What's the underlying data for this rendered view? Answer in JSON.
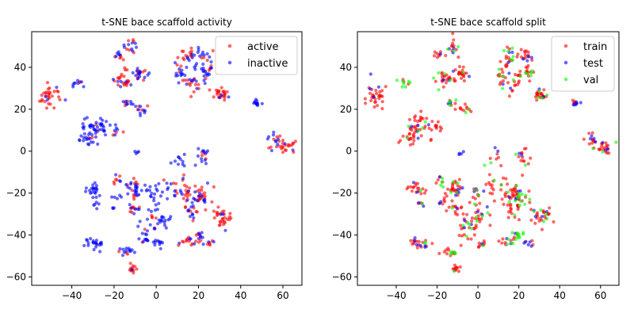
{
  "chart_data": [
    {
      "type": "scatter",
      "title": "t-SNE bace scaffold activity",
      "xlabel": "",
      "ylabel": "",
      "xlim": [
        -59,
        69
      ],
      "ylim": [
        -64,
        57
      ],
      "xticks": [
        -40,
        -20,
        0,
        20,
        40,
        60
      ],
      "yticks": [
        -60,
        -40,
        -20,
        0,
        20,
        40
      ],
      "grid": false,
      "legend_position": "upper right",
      "series": [
        {
          "name": "active",
          "color": "#ff0000"
        },
        {
          "name": "inactive",
          "color": "#0000ff"
        }
      ],
      "clusters": [
        {
          "x": -50,
          "y": 27,
          "n": 32,
          "sx": 2.5,
          "sy": 3.5,
          "mix": [
            0.9,
            0.1
          ]
        },
        {
          "x": -37,
          "y": 32,
          "n": 10,
          "sx": 1.5,
          "sy": 1.0,
          "mix": [
            0.3,
            0.7
          ]
        },
        {
          "x": -18,
          "y": 46,
          "n": 10,
          "sx": 1.5,
          "sy": 1.2,
          "mix": [
            0.6,
            0.4
          ]
        },
        {
          "x": -12,
          "y": 50,
          "n": 14,
          "sx": 1.5,
          "sy": 2.0,
          "mix": [
            0.5,
            0.5
          ]
        },
        {
          "x": -16,
          "y": 34,
          "n": 26,
          "sx": 2.5,
          "sy": 2.0,
          "mix": [
            0.8,
            0.2
          ]
        },
        {
          "x": -8,
          "y": 37,
          "n": 22,
          "sx": 2.0,
          "sy": 2.0,
          "mix": [
            0.5,
            0.5
          ]
        },
        {
          "x": -13,
          "y": 23,
          "n": 10,
          "sx": 1.5,
          "sy": 1.0,
          "mix": [
            0.2,
            0.8
          ]
        },
        {
          "x": -7,
          "y": 20,
          "n": 12,
          "sx": 2.0,
          "sy": 1.5,
          "mix": [
            0.3,
            0.7
          ]
        },
        {
          "x": -29,
          "y": 12,
          "n": 40,
          "sx": 3.5,
          "sy": 3.0,
          "mix": [
            0.1,
            0.9
          ]
        },
        {
          "x": -33,
          "y": 6,
          "n": 16,
          "sx": 3.0,
          "sy": 1.2,
          "mix": [
            0.1,
            0.9
          ]
        },
        {
          "x": -20,
          "y": 11,
          "n": 10,
          "sx": 2.0,
          "sy": 1.5,
          "mix": [
            0.1,
            0.9
          ]
        },
        {
          "x": -9,
          "y": -1,
          "n": 4,
          "sx": 1.0,
          "sy": 0.5,
          "mix": [
            0.2,
            0.8
          ]
        },
        {
          "x": 12,
          "y": 37,
          "n": 20,
          "sx": 1.5,
          "sy": 3.0,
          "mix": [
            0.4,
            0.6
          ]
        },
        {
          "x": 18,
          "y": 33,
          "n": 20,
          "sx": 2.0,
          "sy": 3.0,
          "mix": [
            0.6,
            0.4
          ]
        },
        {
          "x": 16,
          "y": 46,
          "n": 18,
          "sx": 2.0,
          "sy": 2.0,
          "mix": [
            0.4,
            0.6
          ]
        },
        {
          "x": 23,
          "y": 46,
          "n": 16,
          "sx": 2.0,
          "sy": 2.0,
          "mix": [
            0.3,
            0.7
          ]
        },
        {
          "x": 24,
          "y": 38,
          "n": 18,
          "sx": 1.5,
          "sy": 2.0,
          "mix": [
            0.4,
            0.6
          ]
        },
        {
          "x": 31,
          "y": 27,
          "n": 25,
          "sx": 2.0,
          "sy": 1.5,
          "mix": [
            0.9,
            0.1
          ]
        },
        {
          "x": 48,
          "y": 23,
          "n": 12,
          "sx": 1.2,
          "sy": 0.6,
          "mix": [
            0.0,
            1.0
          ]
        },
        {
          "x": 55,
          "y": 5,
          "n": 12,
          "sx": 2.0,
          "sy": 1.5,
          "mix": [
            0.1,
            0.9
          ]
        },
        {
          "x": 61,
          "y": 2,
          "n": 24,
          "sx": 2.5,
          "sy": 1.5,
          "mix": [
            0.7,
            0.3
          ]
        },
        {
          "x": 10,
          "y": -4,
          "n": 10,
          "sx": 3.0,
          "sy": 2.5,
          "mix": [
            0.0,
            1.0
          ]
        },
        {
          "x": 22,
          "y": -3,
          "n": 16,
          "sx": 2.0,
          "sy": 3.0,
          "mix": [
            0.4,
            0.6
          ]
        },
        {
          "x": -30,
          "y": -18,
          "n": 20,
          "sx": 2.0,
          "sy": 1.5,
          "mix": [
            0.1,
            0.9
          ]
        },
        {
          "x": -18,
          "y": -14,
          "n": 8,
          "sx": 1.5,
          "sy": 1.0,
          "mix": [
            0.7,
            0.3
          ]
        },
        {
          "x": -19,
          "y": -24,
          "n": 8,
          "sx": 1.5,
          "sy": 2.0,
          "mix": [
            0.1,
            0.9
          ]
        },
        {
          "x": -28,
          "y": -25,
          "n": 6,
          "sx": 1.0,
          "sy": 1.0,
          "mix": [
            0.1,
            0.9
          ]
        },
        {
          "x": -11,
          "y": -18,
          "n": 30,
          "sx": 2.0,
          "sy": 2.5,
          "mix": [
            0.2,
            0.8
          ]
        },
        {
          "x": -11,
          "y": -27,
          "n": 15,
          "sx": 2.0,
          "sy": 2.0,
          "mix": [
            0.5,
            0.5
          ]
        },
        {
          "x": -1,
          "y": -21,
          "n": 15,
          "sx": 1.5,
          "sy": 4.0,
          "mix": [
            0.0,
            1.0
          ]
        },
        {
          "x": 6,
          "y": -18,
          "n": 12,
          "sx": 1.5,
          "sy": 3.0,
          "mix": [
            0.1,
            0.9
          ]
        },
        {
          "x": 15,
          "y": -20,
          "n": 32,
          "sx": 3.0,
          "sy": 3.0,
          "mix": [
            0.7,
            0.3
          ]
        },
        {
          "x": 21,
          "y": -22,
          "n": 25,
          "sx": 2.5,
          "sy": 2.5,
          "mix": [
            0.6,
            0.4
          ]
        },
        {
          "x": 31,
          "y": -31,
          "n": 30,
          "sx": 2.5,
          "sy": 2.5,
          "mix": [
            0.9,
            0.1
          ]
        },
        {
          "x": 17,
          "y": -29,
          "n": 15,
          "sx": 2.0,
          "sy": 2.0,
          "mix": [
            0.5,
            0.5
          ]
        },
        {
          "x": 0,
          "y": -33,
          "n": 30,
          "sx": 3.5,
          "sy": 2.5,
          "mix": [
            0.2,
            0.8
          ]
        },
        {
          "x": -6,
          "y": -40,
          "n": 15,
          "sx": 2.0,
          "sy": 2.5,
          "mix": [
            0.1,
            0.9
          ]
        },
        {
          "x": 1,
          "y": -44,
          "n": 10,
          "sx": 1.5,
          "sy": 1.0,
          "mix": [
            0.1,
            0.9
          ]
        },
        {
          "x": -29,
          "y": -44,
          "n": 22,
          "sx": 2.5,
          "sy": 1.5,
          "mix": [
            0.1,
            0.9
          ]
        },
        {
          "x": -13,
          "y": -48,
          "n": 15,
          "sx": 2.5,
          "sy": 1.0,
          "mix": [
            0.4,
            0.6
          ]
        },
        {
          "x": -11,
          "y": -56,
          "n": 12,
          "sx": 1.0,
          "sy": 1.5,
          "mix": [
            0.7,
            0.3
          ]
        },
        {
          "x": 15,
          "y": -43,
          "n": 15,
          "sx": 2.0,
          "sy": 1.5,
          "mix": [
            0.6,
            0.4
          ]
        },
        {
          "x": 20,
          "y": -40,
          "n": 12,
          "sx": 1.5,
          "sy": 1.5,
          "mix": [
            0.5,
            0.5
          ]
        },
        {
          "x": 25,
          "y": -44,
          "n": 8,
          "sx": 1.5,
          "sy": 1.0,
          "mix": [
            0.3,
            0.7
          ]
        }
      ]
    },
    {
      "type": "scatter",
      "title": "t-SNE bace scaffold split",
      "xlabel": "",
      "ylabel": "",
      "xlim": [
        -59,
        69
      ],
      "ylim": [
        -64,
        57
      ],
      "xticks": [
        -40,
        -20,
        0,
        20,
        40,
        60
      ],
      "yticks": [
        -60,
        -40,
        -20,
        0,
        20,
        40
      ],
      "grid": false,
      "legend_position": "upper right",
      "series": [
        {
          "name": "train",
          "color": "#ff0000"
        },
        {
          "name": "test",
          "color": "#0000ff"
        },
        {
          "name": "val",
          "color": "#00ff00"
        }
      ],
      "clusters": [
        {
          "x": -50,
          "y": 27,
          "n": 32,
          "sx": 2.5,
          "sy": 3.5,
          "mix": [
            0.85,
            0.1,
            0.05
          ]
        },
        {
          "x": -37,
          "y": 32,
          "n": 10,
          "sx": 1.5,
          "sy": 1.0,
          "mix": [
            0.2,
            0.3,
            0.5
          ]
        },
        {
          "x": -18,
          "y": 46,
          "n": 10,
          "sx": 1.5,
          "sy": 1.2,
          "mix": [
            0.8,
            0.1,
            0.1
          ]
        },
        {
          "x": -12,
          "y": 50,
          "n": 14,
          "sx": 1.5,
          "sy": 2.0,
          "mix": [
            0.6,
            0.2,
            0.2
          ]
        },
        {
          "x": -16,
          "y": 34,
          "n": 26,
          "sx": 2.5,
          "sy": 2.0,
          "mix": [
            0.8,
            0.1,
            0.1
          ]
        },
        {
          "x": -8,
          "y": 37,
          "n": 22,
          "sx": 2.0,
          "sy": 2.0,
          "mix": [
            0.8,
            0.1,
            0.1
          ]
        },
        {
          "x": -13,
          "y": 23,
          "n": 10,
          "sx": 1.5,
          "sy": 1.0,
          "mix": [
            0.6,
            0.2,
            0.2
          ]
        },
        {
          "x": -7,
          "y": 20,
          "n": 12,
          "sx": 2.0,
          "sy": 1.5,
          "mix": [
            0.7,
            0.1,
            0.2
          ]
        },
        {
          "x": -29,
          "y": 12,
          "n": 40,
          "sx": 3.5,
          "sy": 3.0,
          "mix": [
            0.8,
            0.1,
            0.1
          ]
        },
        {
          "x": -33,
          "y": 6,
          "n": 16,
          "sx": 3.0,
          "sy": 1.2,
          "mix": [
            0.8,
            0.1,
            0.1
          ]
        },
        {
          "x": -20,
          "y": 11,
          "n": 10,
          "sx": 2.0,
          "sy": 1.5,
          "mix": [
            0.8,
            0.1,
            0.1
          ]
        },
        {
          "x": -9,
          "y": -1,
          "n": 4,
          "sx": 1.0,
          "sy": 0.5,
          "mix": [
            0.5,
            0.5,
            0.0
          ]
        },
        {
          "x": 12,
          "y": 37,
          "n": 20,
          "sx": 1.5,
          "sy": 3.0,
          "mix": [
            0.8,
            0.1,
            0.1
          ]
        },
        {
          "x": 18,
          "y": 33,
          "n": 20,
          "sx": 2.0,
          "sy": 3.0,
          "mix": [
            0.7,
            0.1,
            0.2
          ]
        },
        {
          "x": 16,
          "y": 46,
          "n": 18,
          "sx": 2.0,
          "sy": 2.0,
          "mix": [
            0.7,
            0.1,
            0.2
          ]
        },
        {
          "x": 23,
          "y": 46,
          "n": 16,
          "sx": 2.0,
          "sy": 2.0,
          "mix": [
            0.7,
            0.2,
            0.1
          ]
        },
        {
          "x": 24,
          "y": 38,
          "n": 18,
          "sx": 1.5,
          "sy": 2.0,
          "mix": [
            0.7,
            0.1,
            0.2
          ]
        },
        {
          "x": 31,
          "y": 27,
          "n": 25,
          "sx": 2.0,
          "sy": 1.5,
          "mix": [
            0.8,
            0.1,
            0.1
          ]
        },
        {
          "x": 48,
          "y": 23,
          "n": 12,
          "sx": 1.2,
          "sy": 0.6,
          "mix": [
            0.6,
            0.4,
            0.0
          ]
        },
        {
          "x": 55,
          "y": 5,
          "n": 12,
          "sx": 2.0,
          "sy": 1.5,
          "mix": [
            0.8,
            0.2,
            0.0
          ]
        },
        {
          "x": 61,
          "y": 2,
          "n": 24,
          "sx": 2.5,
          "sy": 1.5,
          "mix": [
            0.7,
            0.1,
            0.2
          ]
        },
        {
          "x": 10,
          "y": -4,
          "n": 10,
          "sx": 3.0,
          "sy": 2.5,
          "mix": [
            0.8,
            0.1,
            0.1
          ]
        },
        {
          "x": 22,
          "y": -3,
          "n": 16,
          "sx": 2.0,
          "sy": 3.0,
          "mix": [
            0.7,
            0.2,
            0.1
          ]
        },
        {
          "x": -30,
          "y": -18,
          "n": 20,
          "sx": 2.0,
          "sy": 1.5,
          "mix": [
            0.8,
            0.1,
            0.1
          ]
        },
        {
          "x": -18,
          "y": -14,
          "n": 8,
          "sx": 1.5,
          "sy": 1.0,
          "mix": [
            0.8,
            0.1,
            0.1
          ]
        },
        {
          "x": -19,
          "y": -24,
          "n": 8,
          "sx": 1.5,
          "sy": 2.0,
          "mix": [
            0.7,
            0.2,
            0.1
          ]
        },
        {
          "x": -28,
          "y": -25,
          "n": 6,
          "sx": 1.0,
          "sy": 1.0,
          "mix": [
            0.7,
            0.2,
            0.1
          ]
        },
        {
          "x": -11,
          "y": -18,
          "n": 30,
          "sx": 2.0,
          "sy": 2.5,
          "mix": [
            0.8,
            0.1,
            0.1
          ]
        },
        {
          "x": -11,
          "y": -27,
          "n": 15,
          "sx": 2.0,
          "sy": 2.0,
          "mix": [
            0.7,
            0.2,
            0.1
          ]
        },
        {
          "x": -1,
          "y": -21,
          "n": 15,
          "sx": 1.5,
          "sy": 4.0,
          "mix": [
            0.8,
            0.1,
            0.1
          ]
        },
        {
          "x": 6,
          "y": -18,
          "n": 12,
          "sx": 1.5,
          "sy": 3.0,
          "mix": [
            0.7,
            0.2,
            0.1
          ]
        },
        {
          "x": 15,
          "y": -20,
          "n": 32,
          "sx": 3.0,
          "sy": 3.0,
          "mix": [
            0.8,
            0.1,
            0.1
          ]
        },
        {
          "x": 21,
          "y": -22,
          "n": 25,
          "sx": 2.5,
          "sy": 2.5,
          "mix": [
            0.6,
            0.2,
            0.2
          ]
        },
        {
          "x": 31,
          "y": -31,
          "n": 30,
          "sx": 2.5,
          "sy": 2.5,
          "mix": [
            0.8,
            0.1,
            0.1
          ]
        },
        {
          "x": 17,
          "y": -29,
          "n": 15,
          "sx": 2.0,
          "sy": 2.0,
          "mix": [
            0.7,
            0.2,
            0.1
          ]
        },
        {
          "x": 0,
          "y": -33,
          "n": 30,
          "sx": 3.5,
          "sy": 2.5,
          "mix": [
            0.8,
            0.1,
            0.1
          ]
        },
        {
          "x": -6,
          "y": -40,
          "n": 15,
          "sx": 2.0,
          "sy": 2.5,
          "mix": [
            0.7,
            0.1,
            0.2
          ]
        },
        {
          "x": 1,
          "y": -44,
          "n": 10,
          "sx": 1.5,
          "sy": 1.0,
          "mix": [
            0.7,
            0.2,
            0.1
          ]
        },
        {
          "x": -29,
          "y": -44,
          "n": 22,
          "sx": 2.5,
          "sy": 1.5,
          "mix": [
            0.6,
            0.3,
            0.1
          ]
        },
        {
          "x": -13,
          "y": -48,
          "n": 15,
          "sx": 2.5,
          "sy": 1.0,
          "mix": [
            0.7,
            0.1,
            0.2
          ]
        },
        {
          "x": -11,
          "y": -56,
          "n": 12,
          "sx": 1.0,
          "sy": 1.5,
          "mix": [
            0.8,
            0.1,
            0.1
          ]
        },
        {
          "x": 15,
          "y": -43,
          "n": 15,
          "sx": 2.0,
          "sy": 1.5,
          "mix": [
            0.7,
            0.1,
            0.2
          ]
        },
        {
          "x": 20,
          "y": -40,
          "n": 12,
          "sx": 1.5,
          "sy": 1.5,
          "mix": [
            0.1,
            0.1,
            0.8
          ]
        },
        {
          "x": 25,
          "y": -44,
          "n": 8,
          "sx": 1.5,
          "sy": 1.0,
          "mix": [
            0.7,
            0.2,
            0.1
          ]
        }
      ]
    }
  ]
}
